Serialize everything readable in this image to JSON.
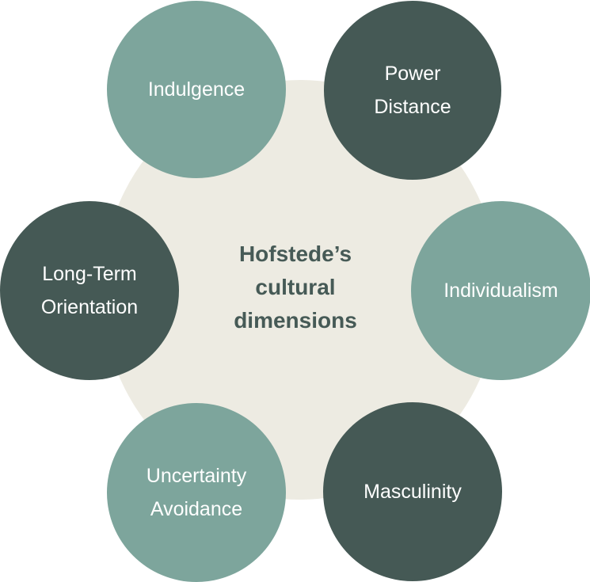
{
  "title": {
    "line1": "Hofstede’s",
    "line2": "cultural",
    "line3": "dimensions"
  },
  "colors": {
    "background": "#ffffff",
    "center_disc": "#edebe2",
    "title_text": "#465a56",
    "node_light": "#7da59c",
    "node_dark": "#455955",
    "node_text": "#ffffff"
  },
  "dimensions": {
    "indulgence": {
      "lines": [
        "Indulgence"
      ],
      "style": "light"
    },
    "power_distance": {
      "lines": [
        "Power",
        "Distance"
      ],
      "style": "dark"
    },
    "individualism": {
      "lines": [
        "Individualism"
      ],
      "style": "light"
    },
    "masculinity": {
      "lines": [
        "Masculinity"
      ],
      "style": "dark"
    },
    "uncertainty_avoidance": {
      "lines": [
        "Uncertainty",
        "Avoidance"
      ],
      "style": "light"
    },
    "long_term_orientation": {
      "lines": [
        "Long-Term",
        "Orientation"
      ],
      "style": "dark"
    }
  }
}
